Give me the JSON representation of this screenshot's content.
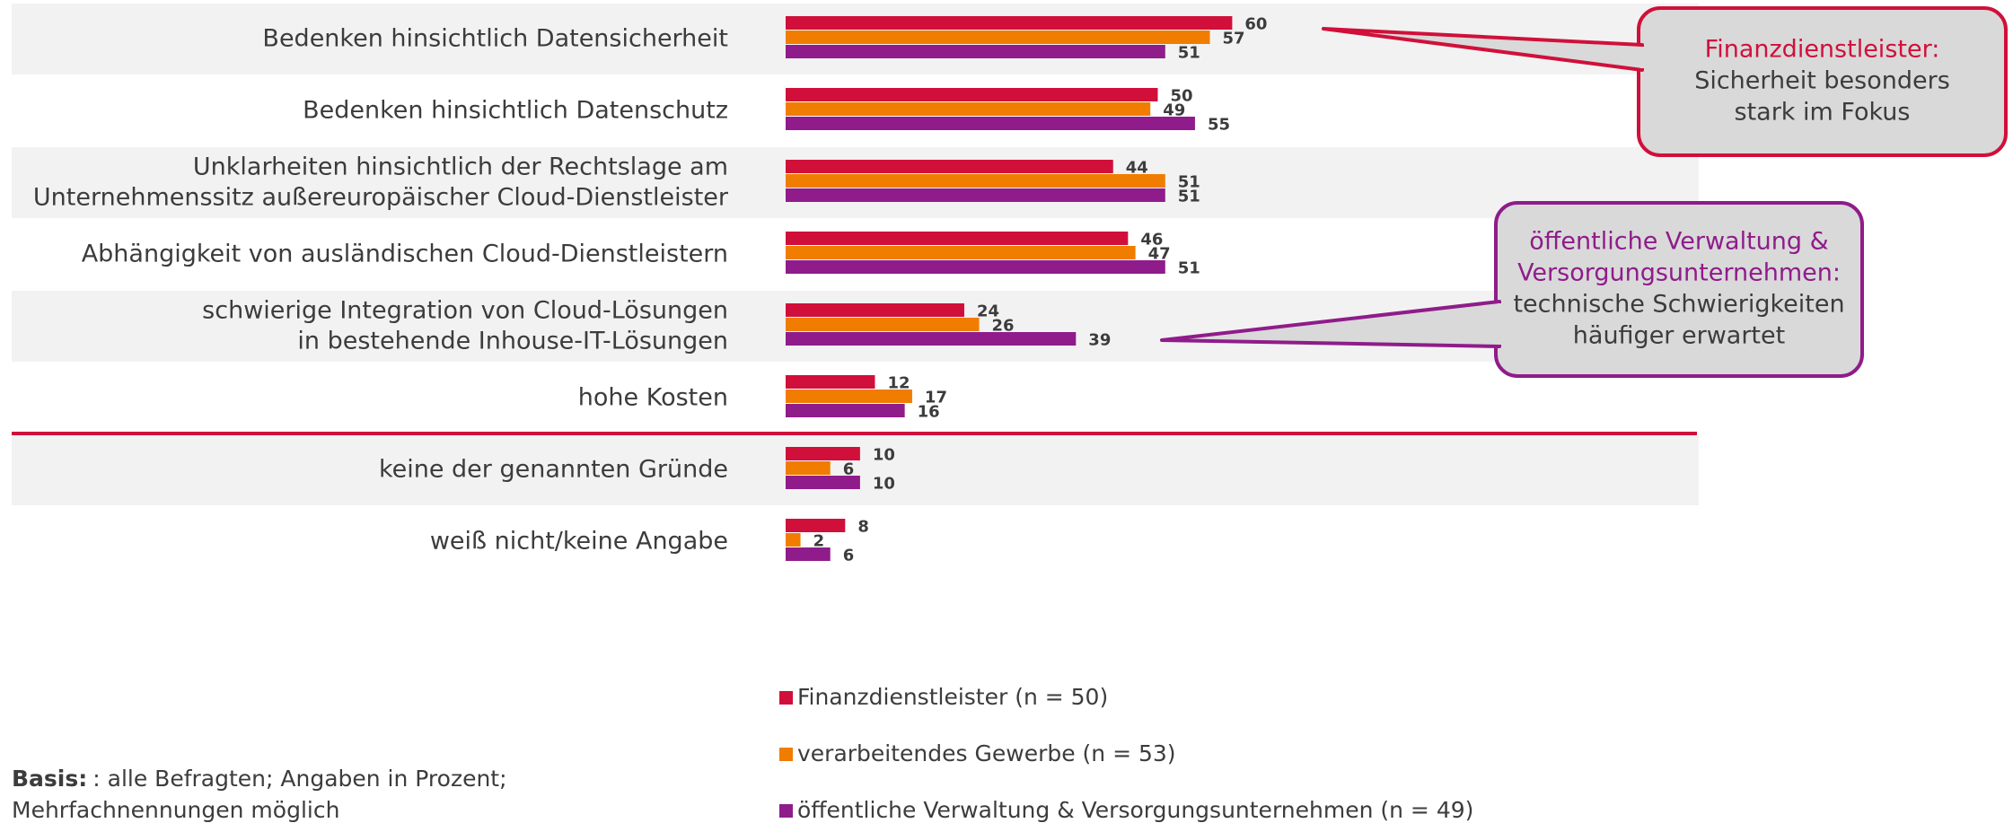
{
  "chart_data": {
    "type": "bar",
    "categories": [
      [
        "Bedenken hinsichtlich Datensicherheit"
      ],
      [
        "Bedenken hinsichtlich Datenschutz"
      ],
      [
        "Unklarheiten hinsichtlich der Rechtslage am",
        "Unternehmenssitz außereuropäischer Cloud-Dienstleister"
      ],
      [
        "Abhängigkeit von ausländischen Cloud-Dienstleistern"
      ],
      [
        "schwierige Integration von Cloud-Lösungen",
        "in bestehende Inhouse-IT-Lösungen"
      ],
      [
        "hohe Kosten"
      ],
      [
        "keine der genannten Gründe"
      ],
      [
        "weiß nicht/keine Angabe"
      ]
    ],
    "series": [
      {
        "name": "Finanzdienstleister (n = 50)",
        "color": "#d0103a",
        "values": [
          60,
          50,
          44,
          46,
          24,
          12,
          10,
          8
        ]
      },
      {
        "name": "verarbeitendes Gewerbe (n = 53)",
        "color": "#f07d00",
        "values": [
          57,
          49,
          51,
          47,
          26,
          17,
          6,
          2
        ]
      },
      {
        "name": "öffentliche Verwaltung & Versorgungsunternehmen (n = 49)",
        "color": "#8f1c8a",
        "values": [
          51,
          55,
          51,
          51,
          39,
          16,
          10,
          6
        ]
      }
    ],
    "annotations": [
      {
        "highlight": [
          "Finanzdienstleister:"
        ],
        "text": [
          "Sicherheit besonders",
          "stark im Fokus"
        ],
        "color": "#d0103a"
      },
      {
        "highlight": [
          "öffentliche Verwaltung &",
          "Versorgungsunternehmen:"
        ],
        "text": [
          "technische Schwierigkeiten",
          "häufiger erwartet"
        ],
        "color": "#8f1c8a"
      }
    ],
    "footnote": {
      "bold": "Basis:",
      "lines": [
        ": alle Befragten; Angaben in Prozent;",
        "Mehrfachnennungen möglich"
      ]
    }
  }
}
